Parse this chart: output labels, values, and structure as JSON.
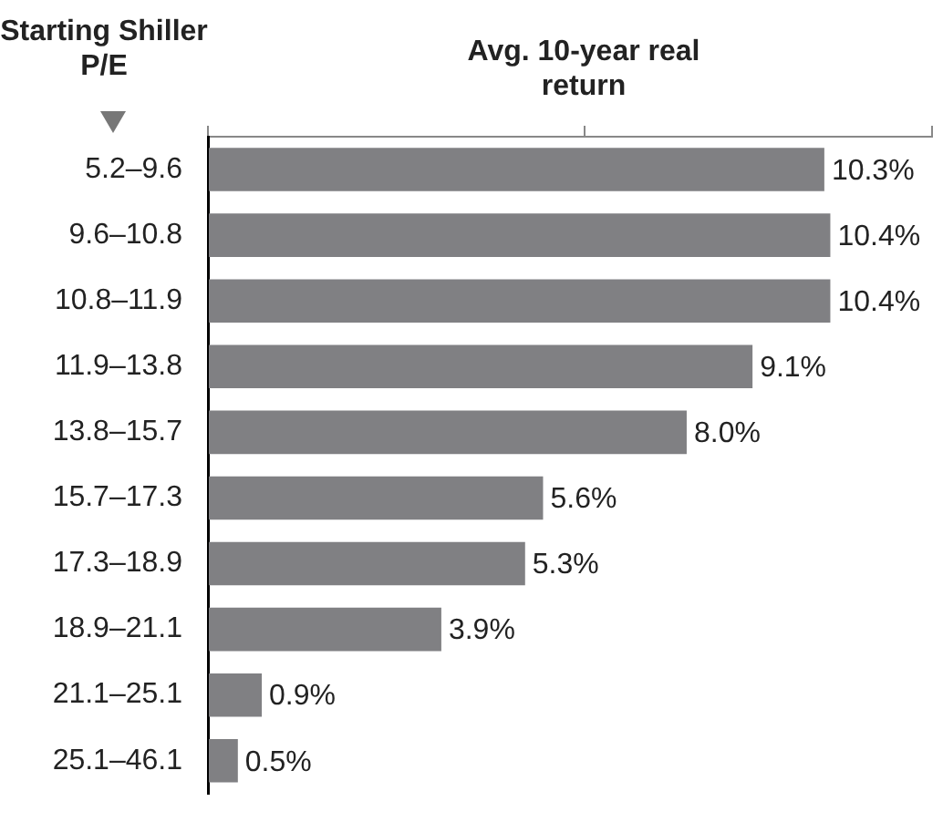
{
  "chart_data": {
    "type": "bar",
    "orientation": "horizontal",
    "xlabel": "Avg. 10-year real return",
    "ylabel": "Starting Shiller P/E",
    "categories": [
      "5.2–9.6",
      "9.6–10.8",
      "10.8–11.9",
      "11.9–13.8",
      "13.8–15.7",
      "15.7–17.3",
      "17.3–18.9",
      "18.9–21.1",
      "21.1–25.1",
      "25.1–46.1"
    ],
    "values": [
      10.3,
      10.4,
      10.4,
      9.1,
      8.0,
      5.6,
      5.3,
      3.9,
      0.9,
      0.5
    ],
    "value_labels": [
      "10.3%",
      "10.4%",
      "10.4%",
      "9.1%",
      "8.0%",
      "5.6%",
      "5.3%",
      "3.9%",
      "0.9%",
      "0.5%"
    ],
    "color": "#808083",
    "xlim": [
      0,
      12.1
    ],
    "xticks": [
      {
        "value": 0,
        "label": null
      },
      {
        "value": 6.3,
        "label": null
      },
      {
        "value": 12.1,
        "label": null
      }
    ],
    "tick_labels": "y"
  }
}
